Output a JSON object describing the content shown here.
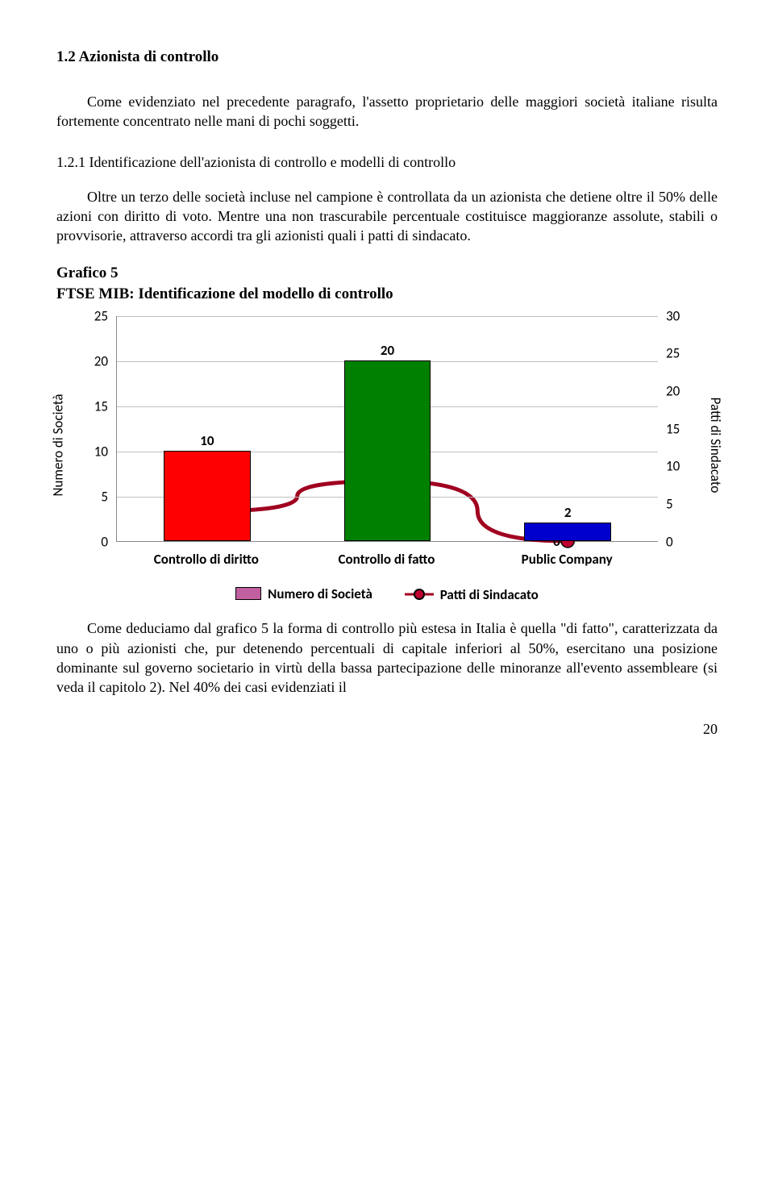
{
  "section_title": "1.2 Azionista di controllo",
  "para1": "Come evidenziato nel precedente paragrafo, l'assetto proprietario delle maggiori società italiane risulta fortemente concentrato nelle mani di pochi soggetti.",
  "subheading": "1.2.1 Identificazione dell'azionista di controllo e modelli di controllo",
  "para2": "Oltre un terzo delle società incluse nel campione è controllata da un azionista che detiene oltre il 50% delle azioni con diritto di voto. Mentre una non trascurabile percentuale costituisce maggioranze assolute, stabili o provvisorie, attraverso accordi tra gli azionisti quali i patti di sindacato.",
  "chart_heading1": "Grafico 5",
  "chart_heading2": "FTSE MIB: Identificazione del modello di controllo",
  "para3": "Come deduciamo dal grafico 5 la forma di controllo più estesa in Italia è quella \"di fatto\", caratterizzata da uno o più azionisti che, pur detenendo percentuali di capitale inferiori al 50%, esercitano una posizione dominante sul governo societario in virtù della bassa partecipazione delle minoranze all'evento assembleare (si veda il capitolo 2). Nel 40% dei casi evidenziati il",
  "page_number": "20",
  "chart": {
    "type": "bar-line-combo",
    "categories": [
      "Controllo di diritto",
      "Controllo di fatto",
      "Public Company"
    ],
    "bar_values": [
      10,
      20,
      2
    ],
    "bar_colors": [
      "#ff0000",
      "#008000",
      "#0000cc"
    ],
    "line_values": [
      4,
      8,
      0
    ],
    "line_color": "#a00020",
    "marker_fill": "#c00030",
    "left_axis": {
      "min": 0,
      "max": 25,
      "step": 5,
      "title": "Numero di Società"
    },
    "right_axis": {
      "min": 0,
      "max": 30,
      "step": 5,
      "title": "Patti di Sindacato"
    },
    "grid_color": "#bfbfbf",
    "legend": {
      "bar_label": "Numero di Società",
      "bar_swatch": "#c060a0",
      "line_label": "Patti di Sindacato"
    },
    "tick_labels_left": [
      "0",
      "5",
      "10",
      "15",
      "20",
      "25"
    ],
    "tick_labels_right": [
      "0",
      "5",
      "10",
      "15",
      "20",
      "25",
      "30"
    ]
  }
}
